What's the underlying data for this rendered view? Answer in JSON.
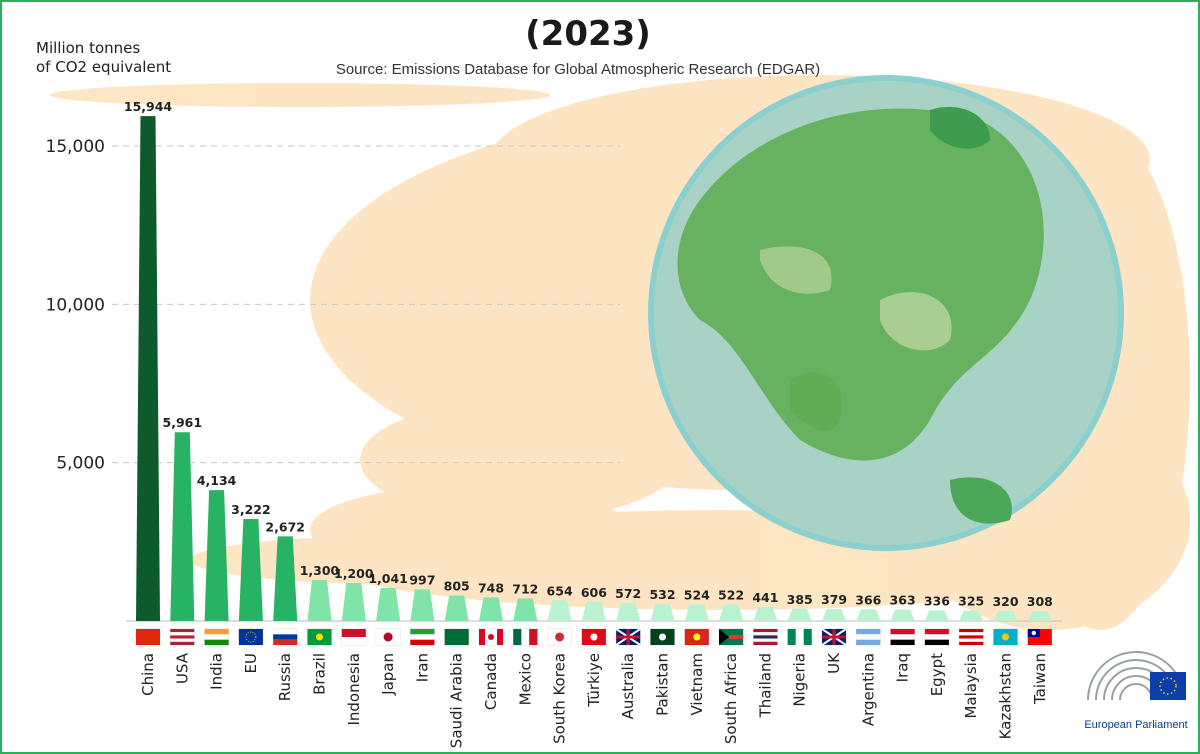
{
  "chart_data": {
    "type": "bar",
    "title": "(2023)",
    "subtitle": "Source: Emissions Database for Global Atmospheric Research (EDGAR)",
    "ylabel": [
      "Million tonnes",
      "of CO2 equivalent"
    ],
    "xlabel": "",
    "ylim": [
      0,
      16500
    ],
    "yticks": [
      5000,
      10000,
      15000
    ],
    "ytick_labels": [
      "5,000",
      "10,000",
      "15,000"
    ],
    "grid": "dashed horizontal",
    "categories": [
      "China",
      "USA",
      "India",
      "EU",
      "Russia",
      "Brazil",
      "Indonesia",
      "Japan",
      "Iran",
      "Saudi Arabia",
      "Canada",
      "Mexico",
      "South Korea",
      "Türkiye",
      "Australia",
      "Pakistan",
      "Vietnam",
      "South Africa",
      "Thailand",
      "Nigeria",
      "UK",
      "Argentina",
      "Iraq",
      "Egypt",
      "Malaysia",
      "Kazakhstan",
      "Taiwan"
    ],
    "values": [
      15944,
      5961,
      4134,
      3222,
      2672,
      1300,
      1200,
      1041,
      997,
      805,
      748,
      712,
      654,
      606,
      572,
      532,
      524,
      522,
      441,
      385,
      379,
      366,
      363,
      336,
      325,
      320,
      308
    ],
    "value_labels": [
      "15,944",
      "5,961",
      "4,134",
      "3,222",
      "2,672",
      "1,300",
      "1,200",
      "1,041",
      "997",
      "805",
      "748",
      "712",
      "654",
      "606",
      "572",
      "532",
      "524",
      "522",
      "441",
      "385",
      "379",
      "366",
      "363",
      "336",
      "325",
      "320",
      "308"
    ],
    "label_colors": {
      "default": "#1f1f1f",
      "EU": "#1c4fc4"
    },
    "bar_colors": {
      "tier1": "#0d5a2c",
      "tier2": "#27b264",
      "tier3": "#80e3a8",
      "tier4": "#b8f2cf"
    }
  },
  "branding": {
    "logo_text": "European Parliament"
  },
  "colors": {
    "frame": "#27b15a",
    "smoke": "#fde3bd",
    "globe_ocean": "#8ccfcf",
    "globe_land": "#5fae55"
  }
}
